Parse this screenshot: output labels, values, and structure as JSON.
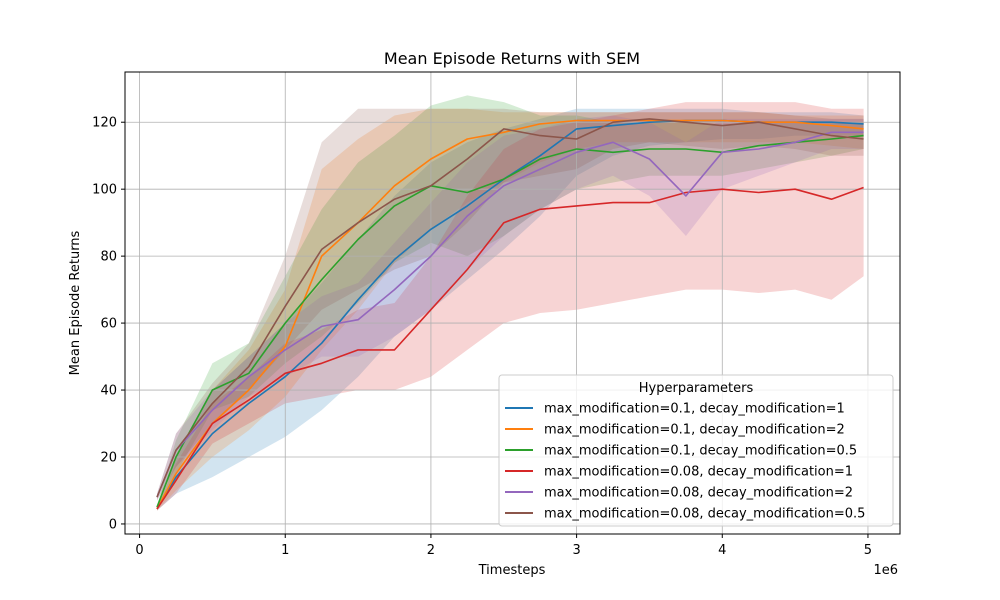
{
  "chart_data": {
    "type": "line",
    "title": "Mean Episode Returns with SEM",
    "xlabel": "Timesteps",
    "ylabel": "Mean Episode Returns",
    "x_offset_label": "1e6",
    "xlim": [
      -0.1,
      5.22
    ],
    "ylim": [
      -3,
      135
    ],
    "x_ticks": [
      0,
      1,
      2,
      3,
      4,
      5
    ],
    "x_tick_labels": [
      "0",
      "1",
      "2",
      "3",
      "4",
      "5"
    ],
    "y_ticks": [
      0,
      20,
      40,
      60,
      80,
      100,
      120
    ],
    "y_tick_labels": [
      "0",
      "20",
      "40",
      "60",
      "80",
      "100",
      "120"
    ],
    "grid": true,
    "legend_title": "Hyperparameters",
    "legend_location": "lower-right",
    "x": [
      0.12,
      0.25,
      0.5,
      0.75,
      1.0,
      1.25,
      1.5,
      1.75,
      2.0,
      2.25,
      2.5,
      2.75,
      3.0,
      3.25,
      3.5,
      3.75,
      4.0,
      4.25,
      4.5,
      4.75,
      4.97
    ],
    "series": [
      {
        "name": "max_modification=0.1, decay_modification=1",
        "color": "#1f77b4",
        "values": [
          4.5,
          14,
          27,
          36,
          44,
          54,
          67,
          79,
          88,
          95,
          103,
          110,
          118,
          119,
          120,
          120.5,
          120.5,
          120,
          120,
          120,
          119.5
        ],
        "lower": [
          4,
          9,
          14,
          20,
          26,
          34,
          44,
          56,
          64,
          73,
          82,
          92,
          104,
          110,
          113,
          114,
          115,
          115,
          116,
          116,
          116
        ],
        "upper": [
          5,
          20,
          40,
          50,
          60,
          72,
          85,
          98,
          108,
          114,
          118,
          121,
          124,
          124,
          124,
          124,
          124,
          123,
          123,
          123,
          122
        ]
      },
      {
        "name": "max_modification=0.1, decay_modification=2",
        "color": "#ff7f0e",
        "values": [
          4.5,
          15,
          30,
          40,
          53,
          80,
          90,
          101,
          109,
          115,
          117,
          119.5,
          120.5,
          120.5,
          120.5,
          120.5,
          120.5,
          120,
          120,
          119,
          118
        ],
        "lower": [
          4,
          10,
          20,
          28,
          38,
          52,
          64,
          78,
          88,
          96,
          102,
          108,
          112,
          114,
          114,
          114,
          114,
          114,
          114,
          113,
          112
        ],
        "upper": [
          5,
          20,
          40,
          52,
          70,
          106,
          115,
          122,
          124,
          124,
          123,
          123,
          123,
          123,
          123,
          123,
          123,
          123,
          122,
          122,
          122
        ]
      },
      {
        "name": "max_modification=0.1, decay_modification=0.5",
        "color": "#2ca02c",
        "values": [
          5,
          20,
          40,
          45,
          60,
          73,
          85,
          95,
          101,
          99,
          103,
          109,
          112,
          111,
          112,
          112,
          111,
          113,
          114,
          115,
          116
        ],
        "lower": [
          4.5,
          15,
          34,
          38,
          48,
          56,
          66,
          78,
          84,
          80,
          86,
          94,
          100,
          102,
          104,
          104,
          104,
          106,
          108,
          110,
          112
        ],
        "upper": [
          5.5,
          25,
          48,
          54,
          74,
          94,
          108,
          116,
          125,
          128,
          126,
          122,
          122,
          120,
          120,
          120,
          119,
          120,
          120,
          120,
          120
        ]
      },
      {
        "name": "max_modification=0.08, decay_modification=1",
        "color": "#d62728",
        "values": [
          4.5,
          13,
          30,
          37,
          45,
          48,
          52,
          52,
          64,
          76,
          90,
          94,
          95,
          96,
          96,
          99,
          100,
          99,
          100,
          97,
          100.5
        ],
        "lower": [
          4,
          9,
          24,
          30,
          36,
          38,
          40,
          40,
          44,
          52,
          60,
          63,
          64,
          66,
          68,
          70,
          70,
          69,
          70,
          67,
          74
        ],
        "upper": [
          5,
          18,
          36,
          44,
          54,
          58,
          64,
          66,
          80,
          98,
          112,
          118,
          120,
          122,
          124,
          126,
          126,
          126,
          126,
          124,
          124
        ]
      },
      {
        "name": "max_modification=0.08, decay_modification=2",
        "color": "#9467bd",
        "values": [
          8,
          22,
          34,
          44,
          52,
          59,
          61,
          70,
          80,
          92,
          101,
          106,
          111,
          114,
          109,
          98,
          111,
          112,
          114,
          117,
          117
        ],
        "lower": [
          7,
          17,
          28,
          38,
          44,
          50,
          50,
          56,
          64,
          76,
          86,
          94,
          100,
          104,
          98,
          86,
          100,
          104,
          108,
          112,
          112
        ],
        "upper": [
          9,
          27,
          40,
          50,
          60,
          68,
          72,
          84,
          96,
          108,
          116,
          118,
          121,
          122,
          120,
          114,
          121,
          121,
          121,
          121,
          121
        ]
      },
      {
        "name": "max_modification=0.08, decay_modification=0.5",
        "color": "#8c564b",
        "values": [
          8,
          22,
          36,
          47,
          65,
          82,
          90,
          97,
          101,
          109,
          118,
          116,
          115,
          120,
          121,
          120,
          119,
          120,
          118,
          116,
          115
        ],
        "lower": [
          7,
          17,
          30,
          40,
          52,
          64,
          70,
          76,
          80,
          90,
          102,
          104,
          106,
          112,
          114,
          113,
          112,
          113,
          112,
          110,
          110
        ],
        "upper": [
          9,
          27,
          42,
          54,
          80,
          114,
          124,
          124,
          124,
          124,
          124,
          123,
          123,
          123,
          123,
          123,
          123,
          123,
          122,
          121,
          121
        ]
      }
    ]
  }
}
